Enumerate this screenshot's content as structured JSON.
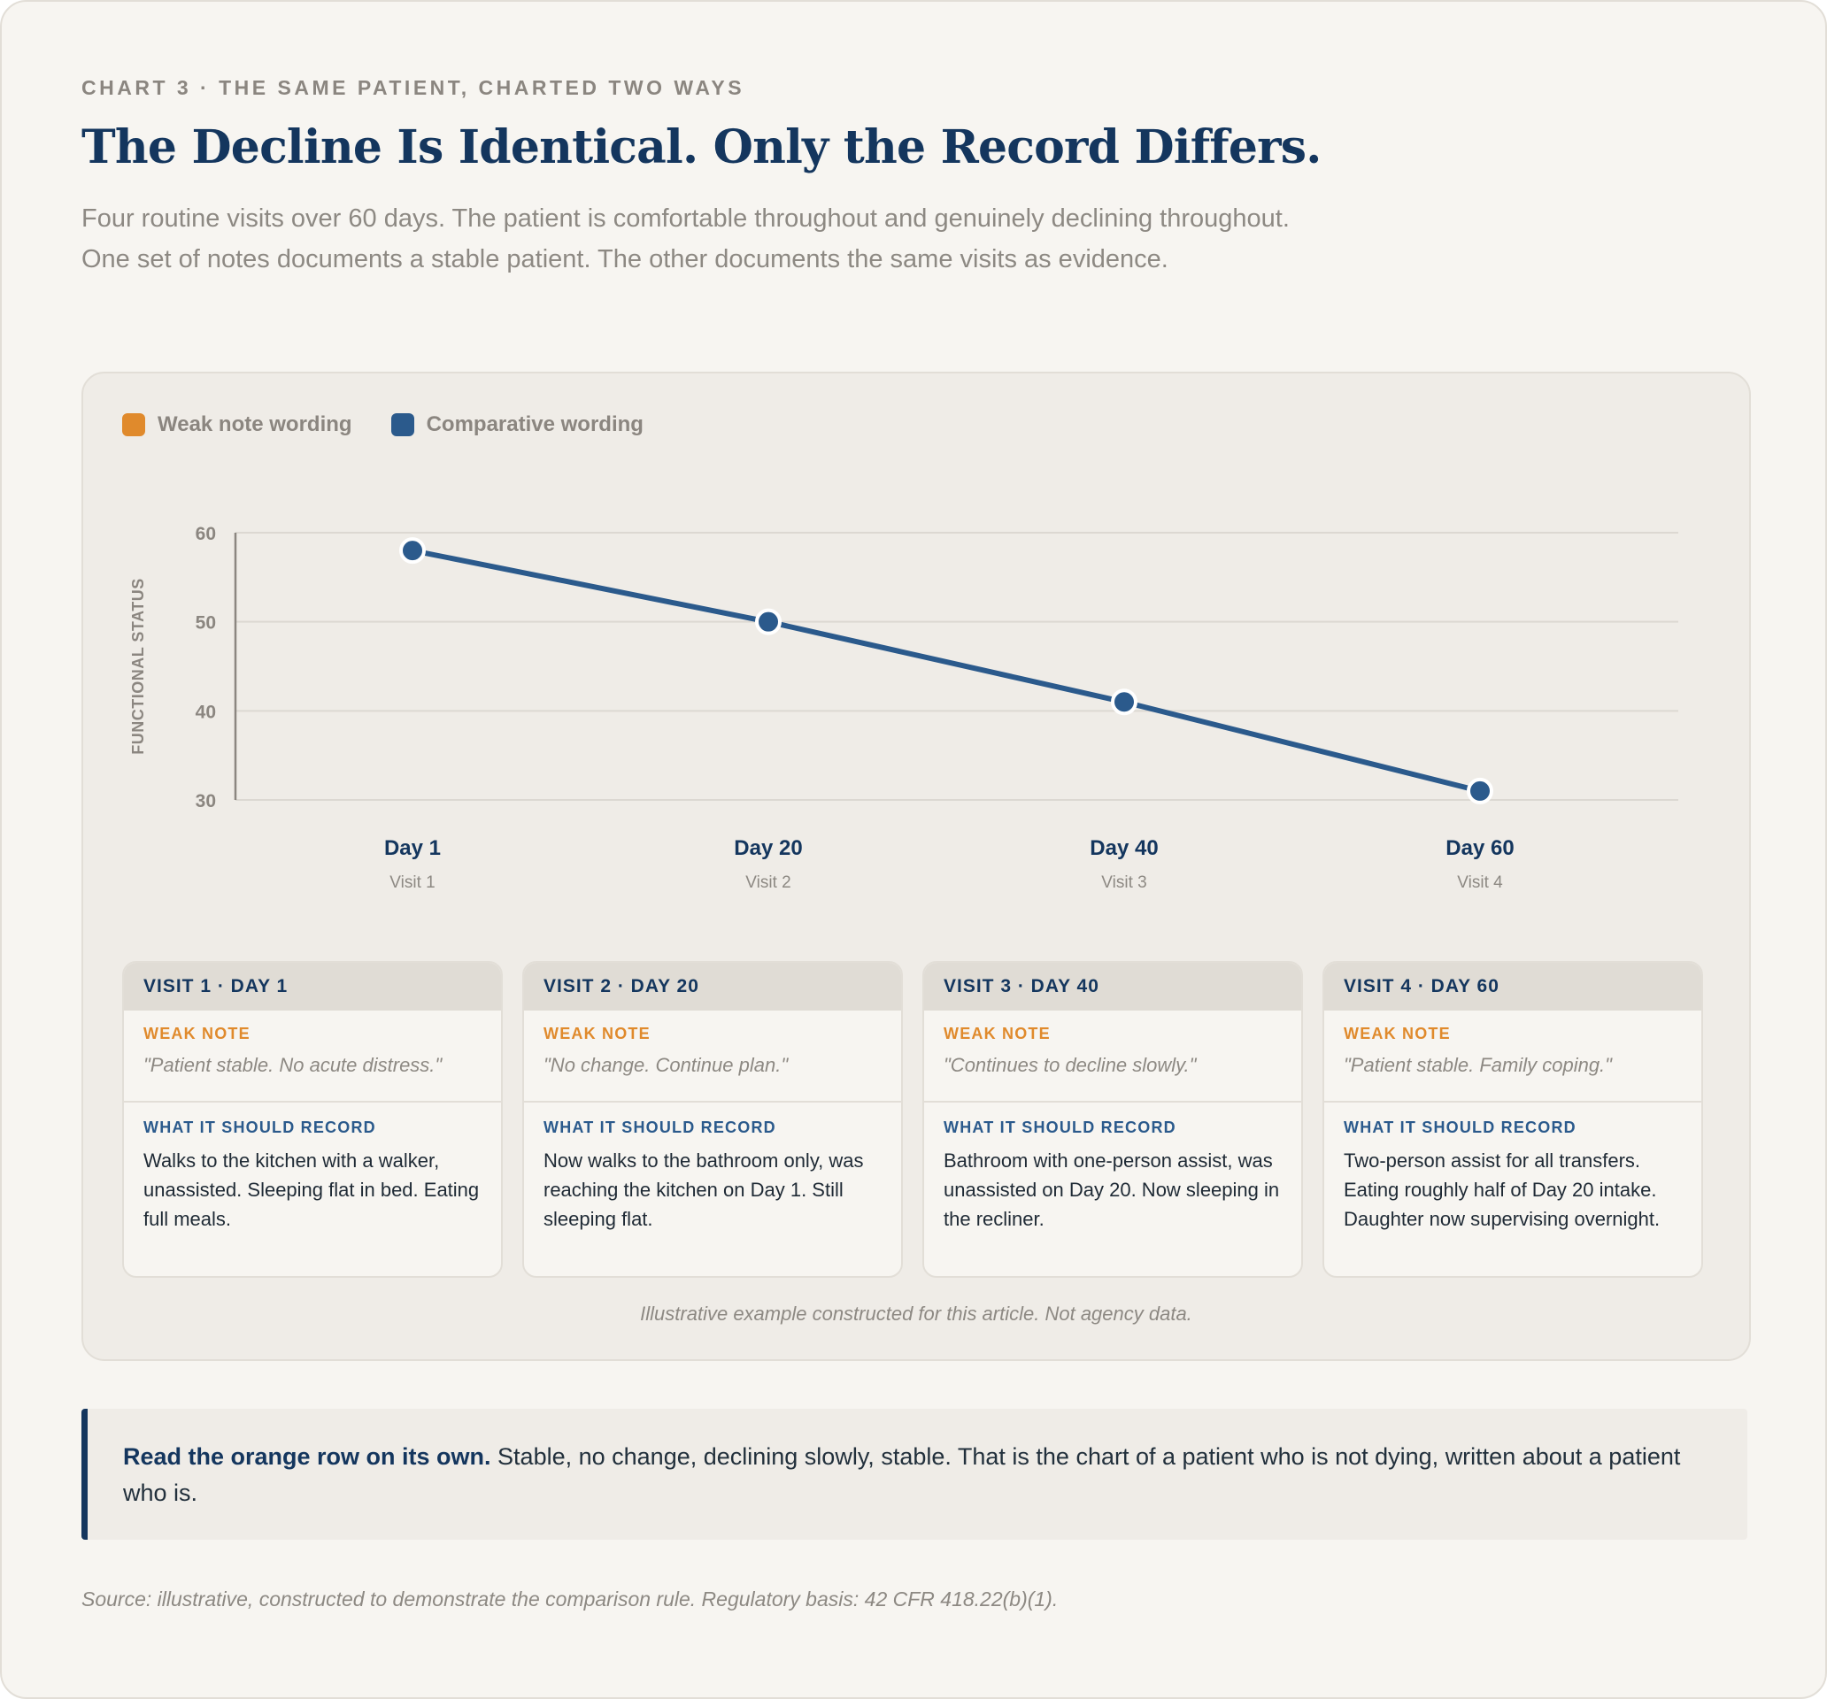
{
  "eyebrow": "CHART 3 · THE SAME PATIENT, CHARTED TWO WAYS",
  "title": "The Decline Is Identical. Only the Record Differs.",
  "subtitle": "Four routine visits over 60 days. The patient is comfortable throughout and genuinely declining throughout. One set of notes documents a stable patient. The other documents the same visits as evidence.",
  "colors": {
    "weak": "#e08a2c",
    "comparative": "#2b5a8c",
    "title_navy": "#14365e",
    "grid": "#dcd8d2"
  },
  "legend": [
    {
      "label": "Weak note wording",
      "color": "#e08a2c"
    },
    {
      "label": "Comparative wording",
      "color": "#2b5a8c"
    }
  ],
  "chart_data": {
    "type": "line",
    "ylabel": "FUNCTIONAL STATUS",
    "ylim": [
      30,
      60
    ],
    "yticks": [
      60,
      50,
      40,
      30
    ],
    "grid": true,
    "legend_position": "top-left",
    "categories": [
      "Day 1",
      "Day 20",
      "Day 40",
      "Day 60"
    ],
    "category_sublabels": [
      "Visit 1",
      "Visit 2",
      "Visit 3",
      "Visit 4"
    ],
    "series": [
      {
        "name": "Comparative wording",
        "color": "#2b5a8c",
        "values": [
          58,
          50,
          41,
          31
        ]
      }
    ]
  },
  "visits": [
    {
      "header": "VISIT 1 · DAY 1",
      "weak_label": "WEAK NOTE",
      "weak_note": "\"Patient stable. No acute distress.\"",
      "should_label": "WHAT IT SHOULD RECORD",
      "should_record": "Walks to the kitchen with a walker, unassisted. Sleeping flat in bed. Eating full meals."
    },
    {
      "header": "VISIT 2 · DAY 20",
      "weak_label": "WEAK NOTE",
      "weak_note": "\"No change. Continue plan.\"",
      "should_label": "WHAT IT SHOULD RECORD",
      "should_record": "Now walks to the bathroom only, was reaching the kitchen on Day 1. Still sleeping flat."
    },
    {
      "header": "VISIT 3 · DAY 40",
      "weak_label": "WEAK NOTE",
      "weak_note": "\"Continues to decline slowly.\"",
      "should_label": "WHAT IT SHOULD RECORD",
      "should_record": "Bathroom with one-person assist, was unassisted on Day 20. Now sleeping in the recliner."
    },
    {
      "header": "VISIT 4 · DAY 60",
      "weak_label": "WEAK NOTE",
      "weak_note": "\"Patient stable. Family coping.\"",
      "should_label": "WHAT IT SHOULD RECORD",
      "should_record": "Two-person assist for all transfers. Eating roughly half of Day 20 intake. Daughter now supervising overnight."
    }
  ],
  "note": "Illustrative example constructed for this article. Not agency data.",
  "callout": {
    "bold": "Read the orange row on its own.",
    "text": " Stable, no change, declining slowly, stable. That is the chart of a patient who is not dying, written about a patient who is."
  },
  "source": "Source: illustrative, constructed to demonstrate the comparison rule. Regulatory basis: 42 CFR 418.22(b)(1)."
}
